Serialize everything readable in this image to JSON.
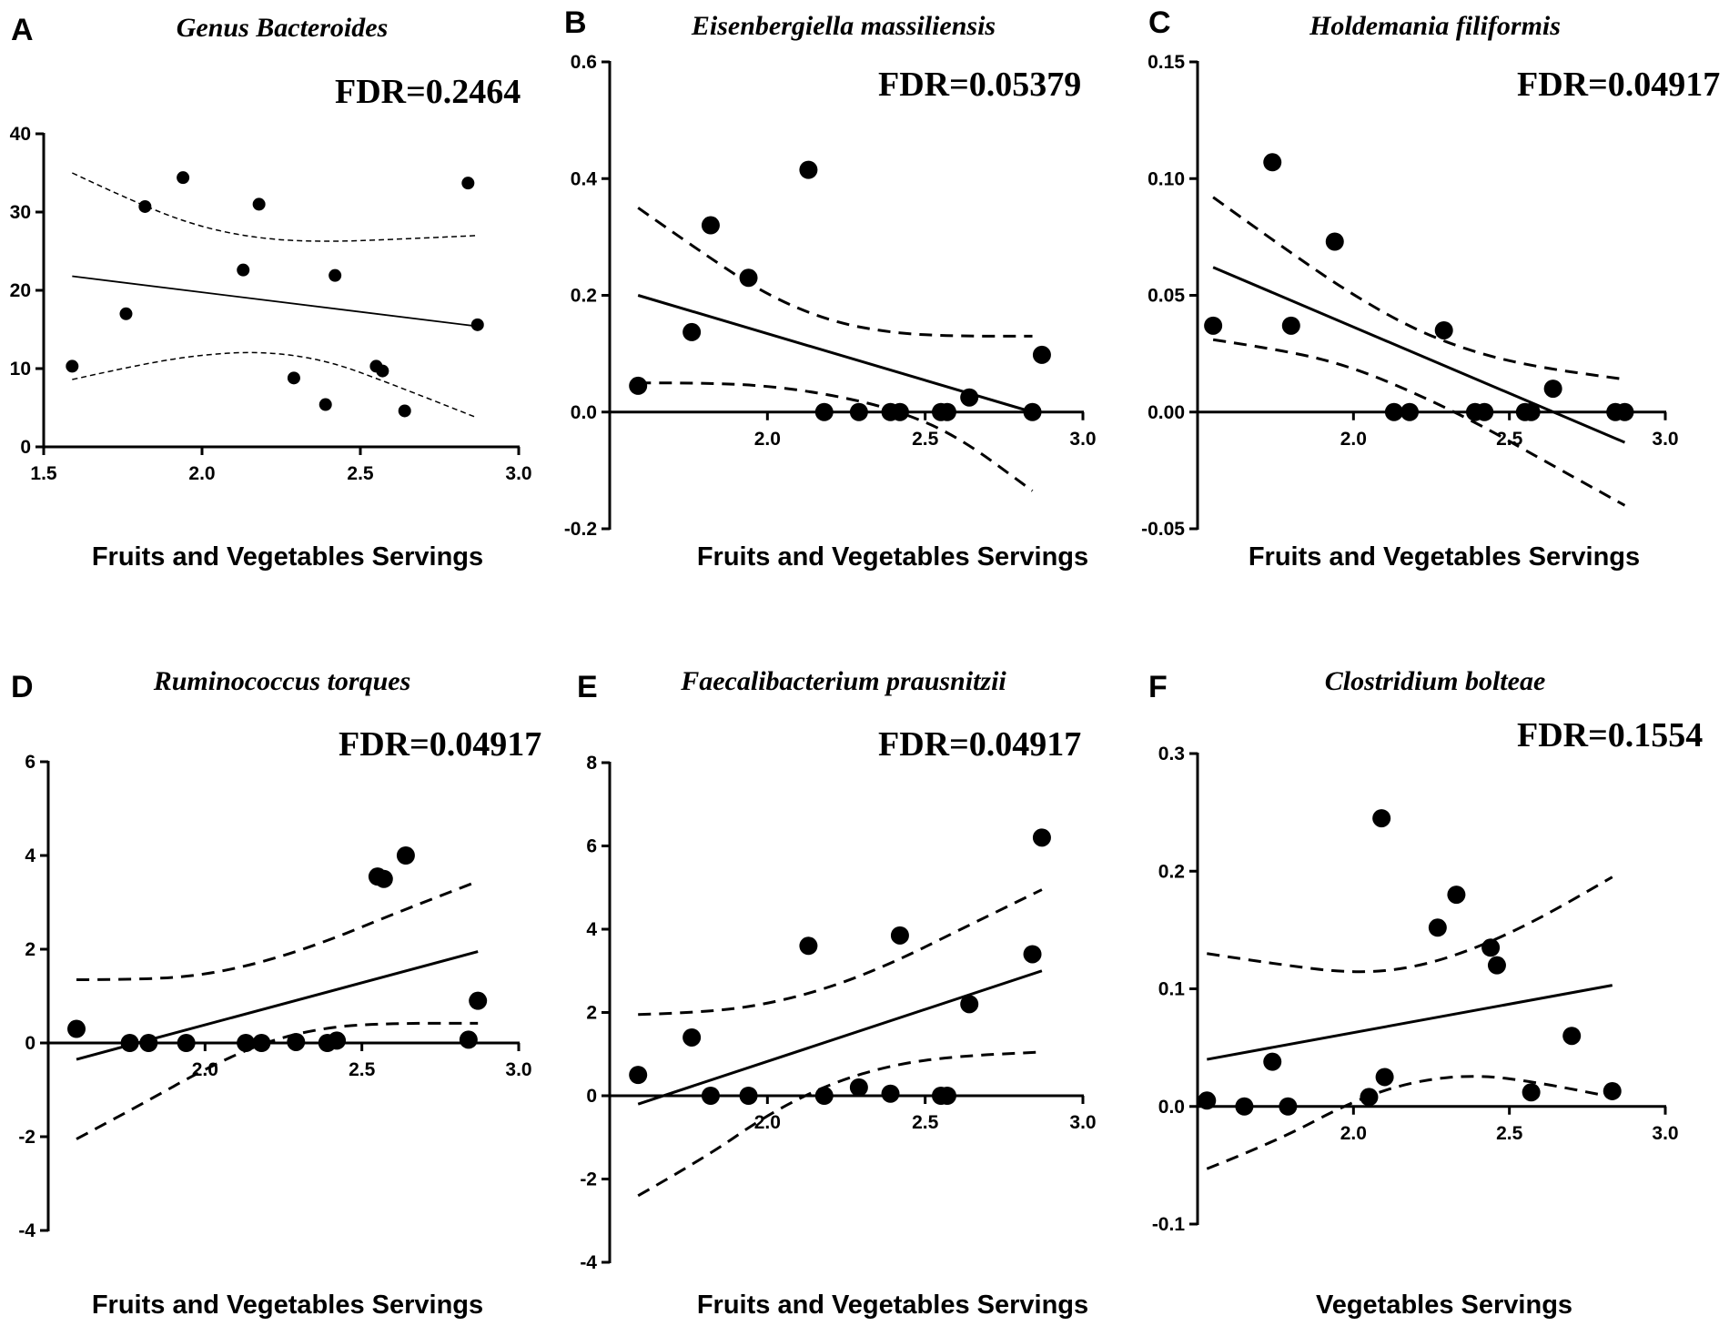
{
  "chart_data": [
    {
      "type": "scatter",
      "panel_letter": "A",
      "title": "Genus Bacteroides",
      "annotation": "FDR=0.2464",
      "xlabel": "Fruits and Vegetables Servings",
      "ylabel": "",
      "xlim": [
        1.5,
        3.0
      ],
      "ylim": [
        0,
        40
      ],
      "xticks": [
        1.5,
        2.0,
        2.5,
        3.0
      ],
      "xtick_labels": [
        "1.5",
        "2.0",
        "2.5",
        "3.0"
      ],
      "yticks": [
        0,
        10,
        20,
        30,
        40
      ],
      "ytick_labels": [
        "0",
        "10",
        "20",
        "30",
        "40"
      ],
      "points": [
        [
          1.59,
          10.3
        ],
        [
          1.76,
          17.0
        ],
        [
          1.82,
          30.7
        ],
        [
          1.94,
          34.4
        ],
        [
          2.13,
          22.6
        ],
        [
          2.18,
          31.0
        ],
        [
          2.29,
          8.8
        ],
        [
          2.39,
          5.4
        ],
        [
          2.42,
          21.9
        ],
        [
          2.55,
          10.3
        ],
        [
          2.57,
          9.7
        ],
        [
          2.64,
          4.6
        ],
        [
          2.84,
          33.7
        ],
        [
          2.87,
          15.6
        ]
      ],
      "fit_line": [
        [
          1.59,
          21.8
        ],
        [
          2.87,
          15.4
        ]
      ],
      "ci_upper": [
        [
          1.59,
          35.0
        ],
        [
          1.8,
          31.0
        ],
        [
          2.0,
          28.0
        ],
        [
          2.2,
          26.5
        ],
        [
          2.4,
          26.2
        ],
        [
          2.6,
          26.5
        ],
        [
          2.87,
          27.0
        ]
      ],
      "ci_lower": [
        [
          1.59,
          8.6
        ],
        [
          1.8,
          10.5
        ],
        [
          2.0,
          11.8
        ],
        [
          2.2,
          12.2
        ],
        [
          2.4,
          11.0
        ],
        [
          2.6,
          8.0
        ],
        [
          2.87,
          3.7
        ]
      ]
    },
    {
      "type": "scatter",
      "panel_letter": "B",
      "title": "Eisenbergiella massiliensis",
      "annotation": "FDR=0.05379",
      "xlabel": "Fruits and Vegetables Servings",
      "ylabel": "",
      "xlim": [
        1.5,
        3.0
      ],
      "ylim": [
        -0.2,
        0.6
      ],
      "xaxis_at": 0,
      "xticks": [
        2.0,
        2.5,
        3.0
      ],
      "xtick_labels": [
        "2.0",
        "2.5",
        "3.0"
      ],
      "yticks": [
        -0.2,
        0.0,
        0.2,
        0.4,
        0.6
      ],
      "ytick_labels": [
        "-0.2",
        "0.0",
        "0.2",
        "0.4",
        "0.6"
      ],
      "points": [
        [
          1.59,
          0.045
        ],
        [
          1.76,
          0.137
        ],
        [
          1.82,
          0.32
        ],
        [
          1.94,
          0.23
        ],
        [
          2.13,
          0.415
        ],
        [
          2.18,
          0.0
        ],
        [
          2.29,
          0.0
        ],
        [
          2.39,
          0.0
        ],
        [
          2.42,
          0.0
        ],
        [
          2.55,
          0.0
        ],
        [
          2.57,
          0.0
        ],
        [
          2.64,
          0.025
        ],
        [
          2.84,
          0.0
        ],
        [
          2.87,
          0.098
        ]
      ],
      "fit_line": [
        [
          1.59,
          0.2
        ],
        [
          2.84,
          0.0
        ]
      ],
      "ci_upper": [
        [
          1.59,
          0.35
        ],
        [
          1.8,
          0.27
        ],
        [
          2.0,
          0.2
        ],
        [
          2.2,
          0.155
        ],
        [
          2.4,
          0.135
        ],
        [
          2.6,
          0.13
        ],
        [
          2.84,
          0.13
        ]
      ],
      "ci_lower": [
        [
          1.59,
          0.05
        ],
        [
          1.8,
          0.05
        ],
        [
          2.0,
          0.045
        ],
        [
          2.2,
          0.03
        ],
        [
          2.4,
          0.005
        ],
        [
          2.6,
          -0.04
        ],
        [
          2.84,
          -0.135
        ]
      ]
    },
    {
      "type": "scatter",
      "panel_letter": "C",
      "title": "Holdemania filiformis",
      "annotation": "FDR=0.04917",
      "xlabel": "Fruits and Vegetables Servings",
      "ylabel": "",
      "xlim": [
        1.5,
        3.0
      ],
      "ylim": [
        -0.05,
        0.15
      ],
      "xaxis_at": 0,
      "xticks": [
        2.0,
        2.5,
        3.0
      ],
      "xtick_labels": [
        "2.0",
        "2.5",
        "3.0"
      ],
      "yticks": [
        -0.05,
        0.0,
        0.05,
        0.1,
        0.15
      ],
      "ytick_labels": [
        "-0.05",
        "0.00",
        "0.05",
        "0.10",
        "0.15"
      ],
      "points": [
        [
          1.55,
          0.037
        ],
        [
          1.74,
          0.107
        ],
        [
          1.8,
          0.037
        ],
        [
          1.94,
          0.073
        ],
        [
          2.13,
          0.0
        ],
        [
          2.18,
          0.0
        ],
        [
          2.29,
          0.035
        ],
        [
          2.39,
          0.0
        ],
        [
          2.42,
          0.0
        ],
        [
          2.55,
          0.0
        ],
        [
          2.57,
          0.0
        ],
        [
          2.64,
          0.01
        ],
        [
          2.84,
          0.0
        ],
        [
          2.87,
          0.0
        ]
      ],
      "fit_line": [
        [
          1.55,
          0.062
        ],
        [
          2.87,
          -0.013
        ]
      ],
      "ci_upper": [
        [
          1.55,
          0.092
        ],
        [
          1.8,
          0.068
        ],
        [
          2.0,
          0.05
        ],
        [
          2.2,
          0.035
        ],
        [
          2.4,
          0.025
        ],
        [
          2.6,
          0.019
        ],
        [
          2.87,
          0.014
        ]
      ],
      "ci_lower": [
        [
          1.55,
          0.031
        ],
        [
          1.8,
          0.026
        ],
        [
          2.0,
          0.019
        ],
        [
          2.2,
          0.008
        ],
        [
          2.4,
          -0.005
        ],
        [
          2.6,
          -0.02
        ],
        [
          2.87,
          -0.04
        ]
      ]
    },
    {
      "type": "scatter",
      "panel_letter": "D",
      "title": "Ruminococcus torques",
      "annotation": "FDR=0.04917",
      "xlabel": "Fruits and Vegetables Servings",
      "ylabel": "",
      "xlim": [
        1.5,
        3.0
      ],
      "ylim": [
        -4,
        6
      ],
      "xaxis_at": 0,
      "xticks": [
        2.0,
        2.5,
        3.0
      ],
      "xtick_labels": [
        "2.0",
        "2.5",
        "3.0"
      ],
      "yticks": [
        -4,
        -2,
        0,
        2,
        4,
        6
      ],
      "ytick_labels": [
        "-4",
        "-2",
        "0",
        "2",
        "4",
        "6"
      ],
      "points": [
        [
          1.59,
          0.3
        ],
        [
          1.76,
          0.0
        ],
        [
          1.82,
          0.0
        ],
        [
          1.94,
          0.0
        ],
        [
          2.13,
          0.0
        ],
        [
          2.18,
          0.0
        ],
        [
          2.29,
          0.02
        ],
        [
          2.39,
          0.0
        ],
        [
          2.42,
          0.05
        ],
        [
          2.55,
          3.55
        ],
        [
          2.57,
          3.5
        ],
        [
          2.64,
          4.0
        ],
        [
          2.84,
          0.07
        ],
        [
          2.87,
          0.9
        ]
      ],
      "fit_line": [
        [
          1.59,
          -0.35
        ],
        [
          2.87,
          1.95
        ]
      ],
      "ci_upper": [
        [
          1.59,
          1.35
        ],
        [
          1.8,
          1.35
        ],
        [
          2.0,
          1.45
        ],
        [
          2.2,
          1.75
        ],
        [
          2.4,
          2.2
        ],
        [
          2.6,
          2.75
        ],
        [
          2.87,
          3.45
        ]
      ],
      "ci_lower": [
        [
          1.59,
          -2.05
        ],
        [
          1.8,
          -1.3
        ],
        [
          2.0,
          -0.55
        ],
        [
          2.2,
          0.05
        ],
        [
          2.4,
          0.35
        ],
        [
          2.6,
          0.42
        ],
        [
          2.87,
          0.42
        ]
      ]
    },
    {
      "type": "scatter",
      "panel_letter": "E",
      "title": "Faecalibacterium prausnitzii",
      "annotation": "FDR=0.04917",
      "xlabel": "Fruits and Vegetables Servings",
      "ylabel": "",
      "xlim": [
        1.5,
        3.0
      ],
      "ylim": [
        -4,
        8
      ],
      "xaxis_at": 0,
      "xticks": [
        2.0,
        2.5,
        3.0
      ],
      "xtick_labels": [
        "2.0",
        "2.5",
        "3.0"
      ],
      "yticks": [
        -4,
        -2,
        0,
        2,
        4,
        6,
        8
      ],
      "ytick_labels": [
        "-4",
        "-2",
        "0",
        "2",
        "4",
        "6",
        "8"
      ],
      "points": [
        [
          1.59,
          0.5
        ],
        [
          1.76,
          1.4
        ],
        [
          1.82,
          0.0
        ],
        [
          1.94,
          0.0
        ],
        [
          2.13,
          3.6
        ],
        [
          2.18,
          0.0
        ],
        [
          2.29,
          0.2
        ],
        [
          2.39,
          0.05
        ],
        [
          2.42,
          3.85
        ],
        [
          2.55,
          0.0
        ],
        [
          2.57,
          0.0
        ],
        [
          2.64,
          2.2
        ],
        [
          2.84,
          3.4
        ],
        [
          2.87,
          6.2
        ]
      ],
      "fit_line": [
        [
          1.59,
          -0.2
        ],
        [
          2.87,
          3.0
        ]
      ],
      "ci_upper": [
        [
          1.59,
          1.95
        ],
        [
          1.8,
          2.0
        ],
        [
          2.0,
          2.2
        ],
        [
          2.2,
          2.6
        ],
        [
          2.4,
          3.2
        ],
        [
          2.6,
          3.95
        ],
        [
          2.87,
          4.95
        ]
      ],
      "ci_lower": [
        [
          1.59,
          -2.4
        ],
        [
          1.8,
          -1.5
        ],
        [
          2.0,
          -0.45
        ],
        [
          2.2,
          0.3
        ],
        [
          2.4,
          0.75
        ],
        [
          2.6,
          0.95
        ],
        [
          2.87,
          1.05
        ]
      ]
    },
    {
      "type": "scatter",
      "panel_letter": "F",
      "title": "Clostridium bolteae",
      "annotation": "FDR=0.1554",
      "xlabel": "Vegetables Servings",
      "ylabel": "",
      "xlim": [
        1.5,
        3.0
      ],
      "ylim": [
        -0.1,
        0.3
      ],
      "xaxis_at": 0,
      "xticks": [
        2.0,
        2.5,
        3.0
      ],
      "xtick_labels": [
        "2.0",
        "2.5",
        "3.0"
      ],
      "yticks": [
        -0.1,
        0.0,
        0.1,
        0.2,
        0.3
      ],
      "ytick_labels": [
        "-0.1",
        "0.0",
        "0.1",
        "0.2",
        "0.3"
      ],
      "points": [
        [
          1.53,
          0.005
        ],
        [
          1.65,
          0.0
        ],
        [
          1.74,
          0.038
        ],
        [
          1.79,
          0.0
        ],
        [
          2.05,
          0.008
        ],
        [
          2.09,
          0.245
        ],
        [
          2.1,
          0.025
        ],
        [
          2.27,
          0.152
        ],
        [
          2.33,
          0.18
        ],
        [
          2.44,
          0.135
        ],
        [
          2.46,
          0.12
        ],
        [
          2.57,
          0.012
        ],
        [
          2.7,
          0.06
        ],
        [
          2.83,
          0.013
        ]
      ],
      "fit_line": [
        [
          1.53,
          0.04
        ],
        [
          2.83,
          0.103
        ]
      ],
      "ci_upper": [
        [
          1.53,
          0.13
        ],
        [
          1.75,
          0.121
        ],
        [
          2.0,
          0.113
        ],
        [
          2.2,
          0.118
        ],
        [
          2.4,
          0.135
        ],
        [
          2.6,
          0.16
        ],
        [
          2.83,
          0.195
        ]
      ],
      "ci_lower": [
        [
          1.53,
          -0.053
        ],
        [
          1.75,
          -0.03
        ],
        [
          2.0,
          0.005
        ],
        [
          2.2,
          0.022
        ],
        [
          2.4,
          0.027
        ],
        [
          2.6,
          0.02
        ],
        [
          2.83,
          0.008
        ]
      ]
    }
  ]
}
